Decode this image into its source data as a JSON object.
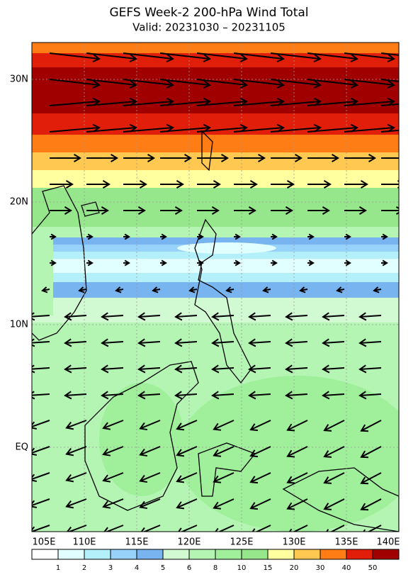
{
  "header": {
    "title": "GEFS Week-2 200-hPa Wind Total",
    "subtitle": "Valid: 20231030 – 20231105"
  },
  "map": {
    "lat_labels": [
      "30N",
      "20N",
      "10N",
      "EQ"
    ],
    "lon_labels": [
      "105E",
      "110E",
      "115E",
      "120E",
      "125E",
      "130E",
      "135E",
      "140E"
    ]
  },
  "colorbar": {
    "labels": [
      "1",
      "2",
      "3",
      "4",
      "5",
      "6",
      "8",
      "10",
      "15",
      "20",
      "30",
      "40",
      "50"
    ],
    "colors": [
      "#ffffff",
      "#e1ffff",
      "#b4f0fa",
      "#96d2fa",
      "#78b4f0",
      "#d2fad2",
      "#b4f5b4",
      "#a0f09b",
      "#96e68c",
      "#ffffa0",
      "#ffc850",
      "#ff7d14",
      "#e11e0a",
      "#a00000"
    ]
  }
}
